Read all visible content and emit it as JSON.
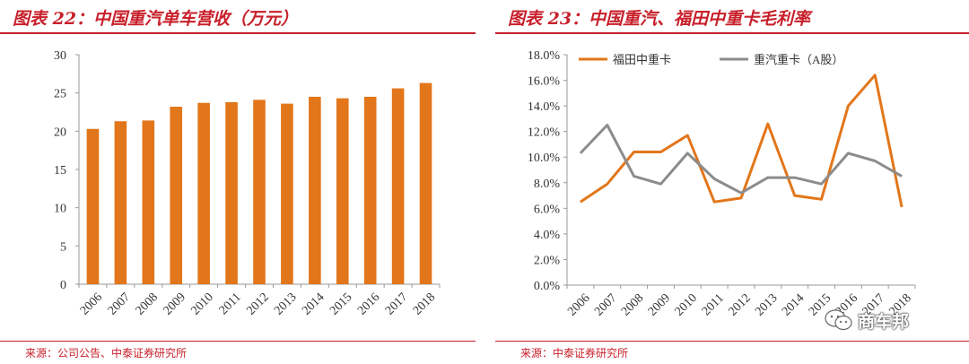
{
  "colors": {
    "accent": "#c8202b",
    "bar": "#e2761a",
    "line1": "#e2761a",
    "line2": "#8c8c8c"
  },
  "left": {
    "title": "图表 22：中国重汽单车营收（万元）",
    "source": "来源：公司公告、中泰证券研究所"
  },
  "right": {
    "title": "图表 23：中国重汽、福田中重卡毛利率",
    "source": "来源：中泰证券研究所"
  },
  "watermark": {
    "text": "商车邦",
    "icon": "wechat-icon"
  },
  "chart_data": [
    {
      "type": "bar",
      "title": "中国重汽单车营收（万元）",
      "categories": [
        "2006",
        "2007",
        "2008",
        "2009",
        "2010",
        "2011",
        "2012",
        "2013",
        "2014",
        "2015",
        "2016",
        "2017",
        "2018"
      ],
      "values": [
        20.3,
        21.3,
        21.4,
        23.2,
        23.7,
        23.8,
        24.1,
        23.6,
        24.5,
        24.3,
        24.5,
        25.6,
        26.3
      ],
      "ylim": [
        0,
        30
      ],
      "yticks": [
        0,
        5,
        10,
        15,
        20,
        25,
        30
      ],
      "xlabel": "",
      "ylabel": ""
    },
    {
      "type": "line",
      "title": "中国重汽、福田中重卡毛利率",
      "categories": [
        "2006",
        "2007",
        "2008",
        "2009",
        "2010",
        "2011",
        "2012",
        "2013",
        "2014",
        "2015",
        "2016",
        "2017",
        "2018"
      ],
      "series": [
        {
          "name": "福田中重卡",
          "values": [
            6.5,
            7.9,
            10.4,
            10.4,
            11.7,
            6.5,
            6.8,
            12.6,
            7.0,
            6.7,
            14.0,
            16.4,
            6.1
          ]
        },
        {
          "name": "重汽重卡（A股）",
          "values": [
            10.3,
            12.5,
            8.5,
            7.9,
            10.3,
            8.3,
            7.2,
            8.4,
            8.4,
            7.9,
            10.3,
            9.7,
            8.5
          ]
        }
      ],
      "ylim": [
        0,
        18
      ],
      "yticks": [
        0,
        2,
        4,
        6,
        8,
        10,
        12,
        14,
        16,
        18
      ],
      "ytick_labels": [
        "0.0%",
        "2.0%",
        "4.0%",
        "6.0%",
        "8.0%",
        "10.0%",
        "12.0%",
        "14.0%",
        "16.0%",
        "18.0%"
      ],
      "legend_position": "top",
      "xlabel": "",
      "ylabel": ""
    }
  ]
}
